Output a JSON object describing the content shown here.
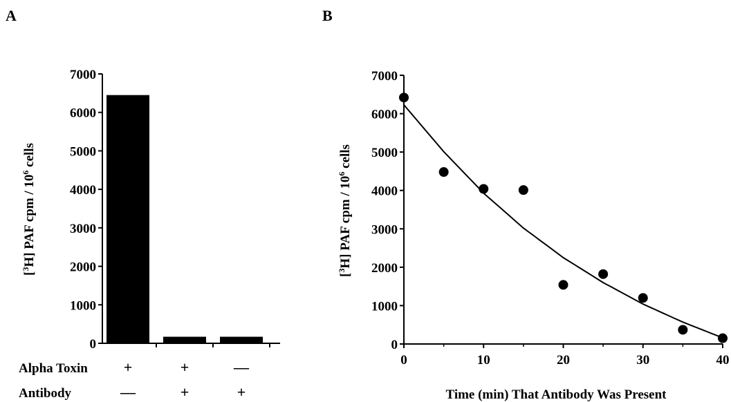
{
  "chart_data": [
    {
      "type": "bar",
      "panel_label": "A",
      "ylabel": "[³H] PAF cpm / 10⁶ cells",
      "ylabel_parts": {
        "pre": "[",
        "sup1": "3",
        "mid": "H] PAF cpm / 10",
        "sup2": "6",
        "post": " cells"
      },
      "ylim": [
        0,
        7000
      ],
      "yticks": [
        0,
        1000,
        2000,
        3000,
        4000,
        5000,
        6000,
        7000
      ],
      "values": [
        6450,
        170,
        170
      ],
      "condition_rows": [
        {
          "label": "Alpha Toxin",
          "marks": [
            "+",
            "+",
            "—"
          ]
        },
        {
          "label": "Antibody",
          "marks": [
            "—",
            "+",
            "+"
          ]
        }
      ]
    },
    {
      "type": "scatter",
      "panel_label": "B",
      "ylabel": "[³H] PAF cpm / 10⁶ cells",
      "ylabel_parts": {
        "pre": "[",
        "sup1": "3",
        "mid": "H] PAF cpm / 10",
        "sup2": "6",
        "post": " cells"
      },
      "xlabel": "Time (min) That Antibody Was Present",
      "xlim": [
        0,
        40
      ],
      "xticks": [
        0,
        10,
        20,
        30,
        40
      ],
      "ylim": [
        0,
        7000
      ],
      "yticks": [
        0,
        1000,
        2000,
        3000,
        4000,
        5000,
        6000,
        7000
      ],
      "points": [
        {
          "x": 0,
          "y": 6420
        },
        {
          "x": 5,
          "y": 4480
        },
        {
          "x": 10,
          "y": 4040
        },
        {
          "x": 15,
          "y": 4010
        },
        {
          "x": 20,
          "y": 1540
        },
        {
          "x": 25,
          "y": 1820
        },
        {
          "x": 30,
          "y": 1200
        },
        {
          "x": 35,
          "y": 370
        },
        {
          "x": 40,
          "y": 150
        }
      ],
      "fit_curve": {
        "type": "exponential",
        "x": [
          0,
          5,
          10,
          15,
          20,
          25,
          30,
          35,
          40
        ],
        "y": [
          6230,
          5010,
          3930,
          3020,
          2250,
          1600,
          1040,
          570,
          160
        ]
      }
    }
  ]
}
